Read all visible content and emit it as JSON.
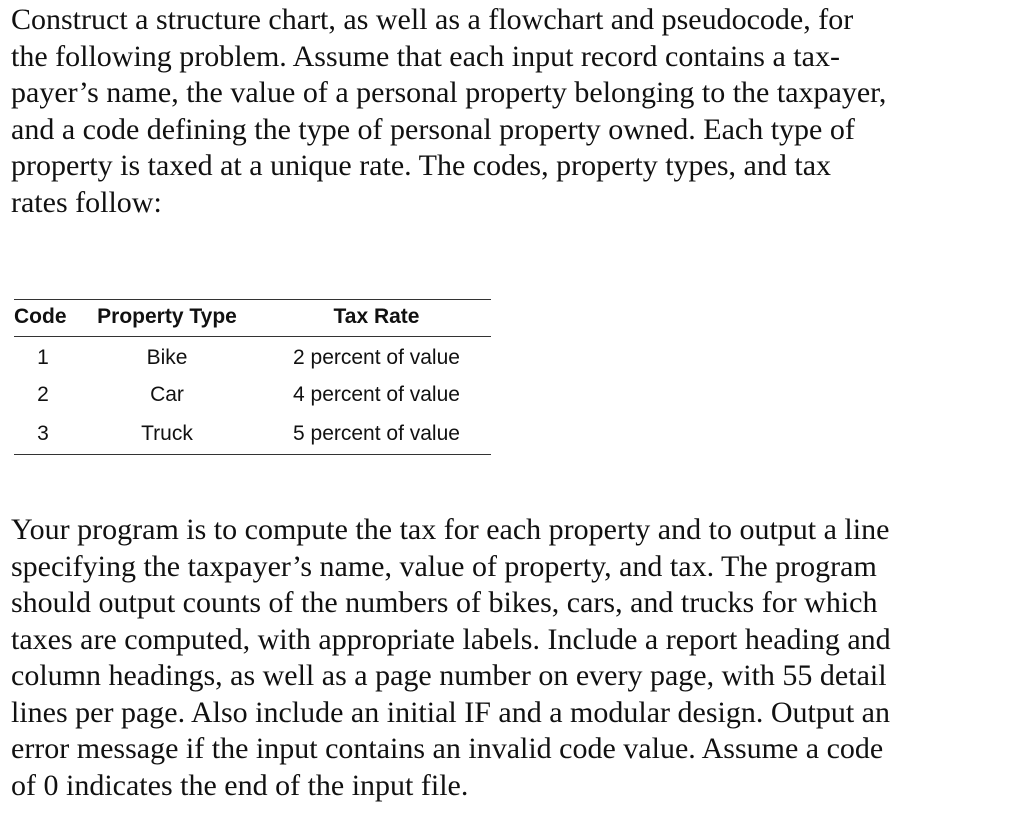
{
  "intro_lines": [
    "Construct a structure chart, as well as a flowchart and pseudocode, for",
    "the following problem. Assume that each input record contains a tax-",
    "payer’s name, the value of a personal property belonging to the taxpayer,",
    "and a code defining the type of personal property owned. Each type of",
    "property is taxed at a unique rate. The codes, property types, and tax",
    "rates follow:"
  ],
  "table": {
    "headers": [
      "Code",
      "Property Type",
      "Tax Rate"
    ],
    "rows": [
      [
        "1",
        "Bike",
        "2 percent of value"
      ],
      [
        "2",
        "Car",
        "4 percent of value"
      ],
      [
        "3",
        "Truck",
        "5 percent of value"
      ]
    ]
  },
  "body_lines": [
    "Your program is to compute the tax for each property and to output a line",
    "specifying the taxpayer’s name, value of property, and tax. The program",
    "should output counts of the numbers of bikes, cars, and trucks for which",
    "taxes are computed, with appropriate labels. Include a report heading and",
    "column headings, as well as a page number on every page, with 55 detail",
    "lines per page. Also include an initial IF and a modular design. Output an",
    "error message if the input contains an invalid code value. Assume a code",
    "of 0 indicates the end of the input file."
  ]
}
